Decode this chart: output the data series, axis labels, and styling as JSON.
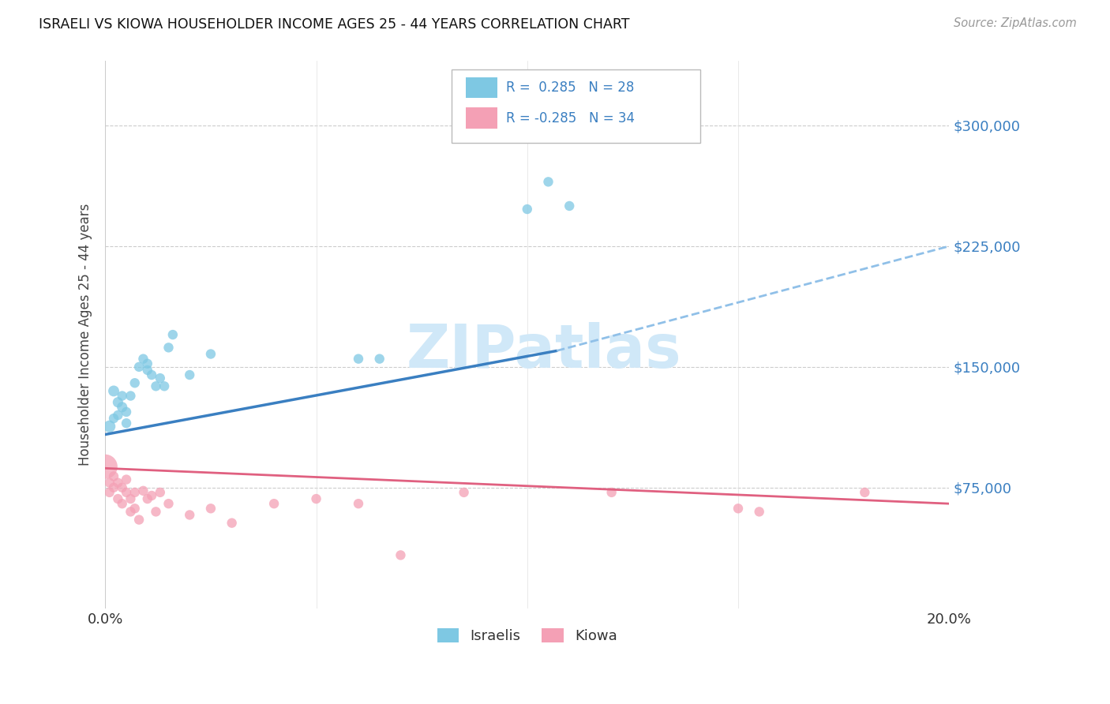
{
  "title": "ISRAELI VS KIOWA HOUSEHOLDER INCOME AGES 25 - 44 YEARS CORRELATION CHART",
  "source": "Source: ZipAtlas.com",
  "ylabel": "Householder Income Ages 25 - 44 years",
  "xlim": [
    0.0,
    0.2
  ],
  "ylim": [
    0,
    340000
  ],
  "yticks": [
    0,
    75000,
    150000,
    225000,
    300000
  ],
  "ytick_labels": [
    "",
    "$75,000",
    "$150,000",
    "$225,000",
    "$300,000"
  ],
  "xticks": [
    0.0,
    0.05,
    0.1,
    0.15,
    0.2
  ],
  "xtick_labels": [
    "0.0%",
    "",
    "",
    "",
    "20.0%"
  ],
  "israeli_color": "#7ec8e3",
  "kiowa_color": "#f4a0b5",
  "trend_blue_solid": "#3a7fc1",
  "trend_blue_dash": "#90c0e8",
  "trend_pink": "#e06080",
  "watermark": "ZIPatlas",
  "watermark_color": "#d0e8f8",
  "israelis_x": [
    0.001,
    0.002,
    0.002,
    0.003,
    0.003,
    0.004,
    0.004,
    0.005,
    0.005,
    0.006,
    0.007,
    0.008,
    0.009,
    0.01,
    0.01,
    0.011,
    0.012,
    0.013,
    0.014,
    0.015,
    0.016,
    0.02,
    0.025,
    0.06,
    0.065,
    0.1,
    0.105,
    0.11
  ],
  "israelis_y": [
    113000,
    118000,
    135000,
    120000,
    128000,
    125000,
    132000,
    115000,
    122000,
    132000,
    140000,
    150000,
    155000,
    148000,
    152000,
    145000,
    138000,
    143000,
    138000,
    162000,
    170000,
    145000,
    158000,
    155000,
    155000,
    248000,
    265000,
    250000
  ],
  "israelis_size": [
    120,
    80,
    100,
    80,
    90,
    90,
    80,
    80,
    80,
    80,
    80,
    80,
    80,
    80,
    80,
    80,
    80,
    80,
    80,
    80,
    80,
    80,
    80,
    80,
    80,
    80,
    80,
    80
  ],
  "kiowa_x": [
    0.0,
    0.001,
    0.001,
    0.002,
    0.002,
    0.003,
    0.003,
    0.004,
    0.004,
    0.005,
    0.005,
    0.006,
    0.006,
    0.007,
    0.007,
    0.008,
    0.009,
    0.01,
    0.011,
    0.012,
    0.013,
    0.015,
    0.02,
    0.025,
    0.03,
    0.04,
    0.05,
    0.06,
    0.07,
    0.085,
    0.12,
    0.15,
    0.155,
    0.18
  ],
  "kiowa_y": [
    88000,
    78000,
    72000,
    82000,
    75000,
    78000,
    68000,
    75000,
    65000,
    80000,
    72000,
    68000,
    60000,
    72000,
    62000,
    55000,
    73000,
    68000,
    70000,
    60000,
    72000,
    65000,
    58000,
    62000,
    53000,
    65000,
    68000,
    65000,
    33000,
    72000,
    72000,
    62000,
    60000,
    72000
  ],
  "kiowa_size": [
    500,
    80,
    80,
    80,
    80,
    80,
    80,
    80,
    80,
    80,
    80,
    80,
    80,
    80,
    80,
    80,
    80,
    80,
    80,
    80,
    80,
    80,
    80,
    80,
    80,
    80,
    80,
    80,
    80,
    80,
    80,
    80,
    80,
    80
  ],
  "trend_israeli_x0": 0.0,
  "trend_israeli_y0": 108000,
  "trend_israeli_x1": 0.107,
  "trend_israeli_y1": 160000,
  "trend_dash_x0": 0.107,
  "trend_dash_y0": 160000,
  "trend_dash_x1": 0.2,
  "trend_dash_y1": 225000,
  "trend_kiowa_x0": 0.0,
  "trend_kiowa_y0": 87000,
  "trend_kiowa_x1": 0.2,
  "trend_kiowa_y1": 65000
}
